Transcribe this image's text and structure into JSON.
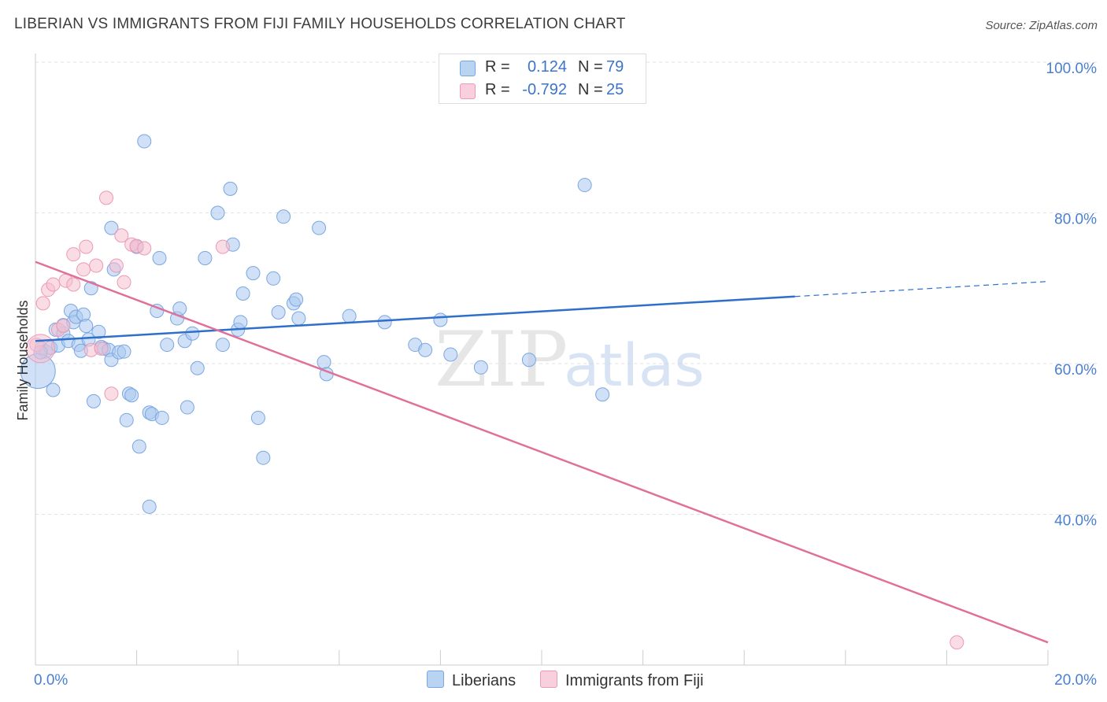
{
  "title": "LIBERIAN VS IMMIGRANTS FROM FIJI FAMILY HOUSEHOLDS CORRELATION CHART",
  "source": "Source: ZipAtlas.com",
  "watermark": {
    "zip": "ZIP",
    "atlas": "atlas"
  },
  "colors": {
    "blue_fill": "#a9c8f0",
    "blue_stroke": "#7aa6e0",
    "blue_line": "#2f6fcc",
    "pink_fill": "#f5bfd0",
    "pink_stroke": "#ec9ab5",
    "pink_line": "#e0709a",
    "tick_text": "#4a7fd0",
    "grid": "#e2e2e2"
  },
  "legend": {
    "r_label": "R =",
    "n_label": "N =",
    "rows": [
      {
        "r": "0.124",
        "n": "79"
      },
      {
        "r": "-0.792",
        "n": "25"
      }
    ]
  },
  "chart_data": {
    "type": "scatter",
    "xlabel": "",
    "ylabel": "Family Households",
    "xlim": [
      0,
      20
    ],
    "ylim": [
      20,
      104
    ],
    "x_tick_labels": [
      {
        "value": 0,
        "label": "0.0%"
      },
      {
        "value": 20,
        "label": "20.0%"
      }
    ],
    "y_tick_labels": [
      {
        "value": 100,
        "label": "100.0%"
      },
      {
        "value": 80,
        "label": "80.0%"
      },
      {
        "value": 60,
        "label": "60.0%"
      },
      {
        "value": 40,
        "label": "40.0%"
      }
    ],
    "series": [
      {
        "name": "Liberians",
        "r": 0.124,
        "n": 79,
        "trend": {
          "x0": 0,
          "y0": 63.0,
          "x1": 15.0,
          "y1": 68.9,
          "dashed_to_x": 20,
          "dashed_to_y": 70.9
        },
        "points": [
          [
            0.12,
            62.0
          ],
          [
            0.2,
            61.6
          ],
          [
            0.3,
            62.1
          ],
          [
            0.35,
            56.5
          ],
          [
            0.4,
            64.5
          ],
          [
            0.45,
            62.4
          ],
          [
            0.55,
            64.0
          ],
          [
            0.55,
            65.1
          ],
          [
            0.65,
            63.0
          ],
          [
            0.7,
            67.0
          ],
          [
            0.75,
            65.5
          ],
          [
            0.8,
            66.2
          ],
          [
            0.85,
            62.5
          ],
          [
            0.9,
            61.7
          ],
          [
            0.95,
            66.5
          ],
          [
            1.0,
            65.0
          ],
          [
            1.05,
            63.2
          ],
          [
            1.1,
            70.0
          ],
          [
            1.15,
            55.0
          ],
          [
            1.25,
            64.2
          ],
          [
            1.3,
            62.2
          ],
          [
            1.35,
            62.0
          ],
          [
            1.45,
            61.8
          ],
          [
            1.5,
            78.0
          ],
          [
            1.5,
            60.5
          ],
          [
            1.55,
            72.5
          ],
          [
            1.65,
            61.5
          ],
          [
            1.75,
            61.6
          ],
          [
            1.8,
            52.5
          ],
          [
            1.85,
            56.0
          ],
          [
            1.9,
            55.8
          ],
          [
            2.0,
            75.5
          ],
          [
            2.05,
            49.0
          ],
          [
            2.15,
            89.5
          ],
          [
            2.25,
            41.0
          ],
          [
            2.25,
            53.5
          ],
          [
            2.3,
            53.3
          ],
          [
            2.4,
            67.0
          ],
          [
            2.45,
            74.0
          ],
          [
            2.5,
            52.8
          ],
          [
            2.6,
            62.5
          ],
          [
            2.8,
            66.0
          ],
          [
            2.85,
            67.3
          ],
          [
            2.95,
            63.0
          ],
          [
            3.0,
            54.2
          ],
          [
            3.1,
            64.0
          ],
          [
            3.2,
            59.4
          ],
          [
            3.35,
            74.0
          ],
          [
            3.6,
            80.0
          ],
          [
            3.7,
            62.5
          ],
          [
            3.85,
            83.2
          ],
          [
            3.9,
            75.8
          ],
          [
            4.0,
            64.5
          ],
          [
            4.05,
            65.5
          ],
          [
            4.1,
            69.3
          ],
          [
            4.3,
            72.0
          ],
          [
            4.4,
            52.8
          ],
          [
            4.5,
            47.5
          ],
          [
            4.7,
            71.3
          ],
          [
            4.8,
            66.8
          ],
          [
            4.9,
            79.5
          ],
          [
            5.1,
            68.0
          ],
          [
            5.15,
            68.5
          ],
          [
            5.2,
            66.0
          ],
          [
            5.6,
            78.0
          ],
          [
            5.7,
            60.2
          ],
          [
            5.75,
            58.6
          ],
          [
            6.2,
            66.3
          ],
          [
            6.9,
            65.5
          ],
          [
            7.5,
            62.5
          ],
          [
            7.7,
            61.8
          ],
          [
            8.0,
            65.8
          ],
          [
            8.2,
            61.2
          ],
          [
            8.8,
            59.5
          ],
          [
            9.75,
            60.5
          ],
          [
            10.85,
            83.7
          ],
          [
            11.2,
            55.9
          ],
          [
            0.05,
            59.0
          ],
          [
            0.1,
            61.5
          ]
        ]
      },
      {
        "name": "Immigrants from Fiji",
        "r": -0.792,
        "n": 25,
        "trend": {
          "x0": 0,
          "y0": 73.5,
          "x1": 20,
          "y1": 23.0
        },
        "points": [
          [
            0.02,
            62.5
          ],
          [
            0.15,
            68.0
          ],
          [
            0.25,
            69.8
          ],
          [
            0.35,
            70.5
          ],
          [
            0.45,
            64.5
          ],
          [
            0.55,
            65.0
          ],
          [
            0.6,
            71.0
          ],
          [
            0.75,
            70.5
          ],
          [
            0.75,
            74.5
          ],
          [
            0.95,
            72.5
          ],
          [
            1.0,
            75.5
          ],
          [
            1.1,
            61.8
          ],
          [
            1.2,
            73.0
          ],
          [
            1.3,
            62.0
          ],
          [
            1.4,
            82.0
          ],
          [
            1.5,
            56.0
          ],
          [
            1.6,
            73.0
          ],
          [
            1.7,
            77.0
          ],
          [
            1.75,
            70.8
          ],
          [
            1.9,
            75.8
          ],
          [
            2.0,
            75.6
          ],
          [
            2.15,
            75.3
          ],
          [
            3.7,
            75.5
          ],
          [
            18.2,
            23.0
          ],
          [
            0.1,
            62.0
          ]
        ]
      }
    ]
  },
  "bottom_legend": {
    "series1": "Liberians",
    "series2": "Immigrants from Fiji"
  }
}
